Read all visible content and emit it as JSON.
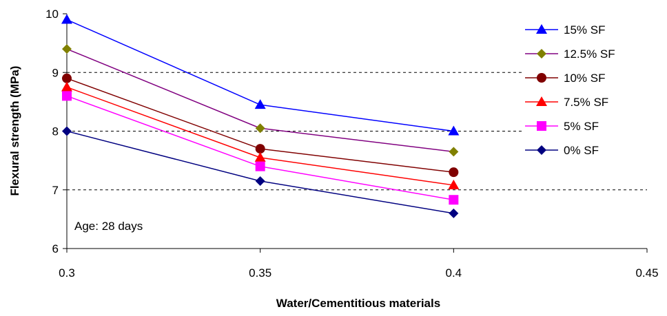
{
  "chart_data": {
    "type": "line",
    "x": [
      0.3,
      0.35,
      0.4
    ],
    "xlim": [
      0.3,
      0.45
    ],
    "xticks": [
      0.3,
      0.35,
      0.4,
      0.45
    ],
    "ylim": [
      6,
      10
    ],
    "yticks": [
      6,
      7,
      8,
      9,
      10
    ],
    "xlabel": "Water/Cementitious materials",
    "ylabel": "Flexural strength (MPa)",
    "gridlines_y": [
      7,
      8,
      9
    ],
    "grid_style": "dashed",
    "legend_position": "top-right",
    "annotation": "Age: 28 days",
    "series": [
      {
        "name": "15% SF",
        "values": [
          9.9,
          8.45,
          8.0
        ],
        "color": "#0000FF",
        "marker": "triangle"
      },
      {
        "name": "12.5% SF",
        "values": [
          9.4,
          8.05,
          7.65
        ],
        "color": "#800080",
        "marker_color": "#808000",
        "marker": "diamond"
      },
      {
        "name": "10% SF",
        "values": [
          8.9,
          7.7,
          7.3
        ],
        "color": "#800000",
        "marker": "circle"
      },
      {
        "name": "7.5% SF",
        "values": [
          8.75,
          7.55,
          7.08
        ],
        "color": "#FF0000",
        "marker": "triangle"
      },
      {
        "name": "5% SF",
        "values": [
          8.6,
          7.4,
          6.83
        ],
        "color": "#FF00FF",
        "marker": "square"
      },
      {
        "name": "0% SF",
        "values": [
          8.0,
          7.15,
          6.6
        ],
        "color": "#000080",
        "marker": "diamond"
      }
    ]
  }
}
